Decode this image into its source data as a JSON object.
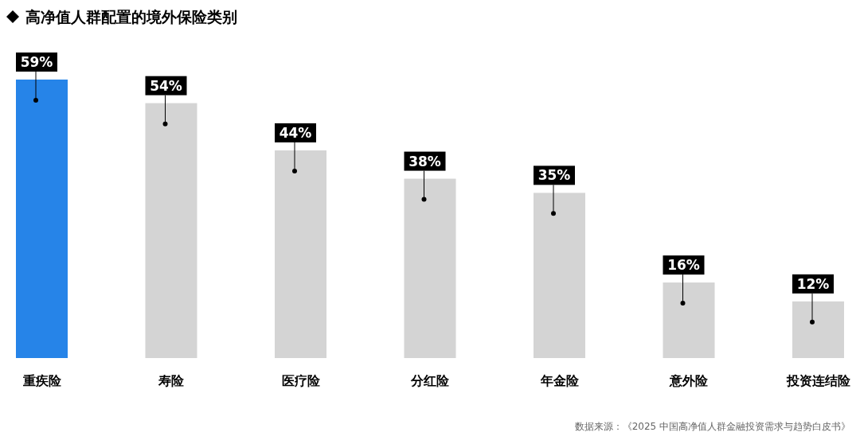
{
  "chart_data": {
    "type": "bar",
    "title": "高净值人群配置的境外保险类别",
    "categories": [
      "重疾险",
      "寿险",
      "医疗险",
      "分红险",
      "年金险",
      "意外险",
      "投资连结险"
    ],
    "values": [
      59,
      54,
      44,
      38,
      35,
      16,
      12
    ],
    "colors": [
      "#2684e8",
      "#d4d4d4",
      "#d4d4d4",
      "#d4d4d4",
      "#d4d4d4",
      "#d4d4d4",
      "#d4d4d4"
    ],
    "value_labels": [
      "59%",
      "54%",
      "44%",
      "38%",
      "35%",
      "16%",
      "12%"
    ],
    "annotations": [
      "数据来源：《2025 中国高净值人群金融投资需求与趋势白皮书》"
    ]
  }
}
